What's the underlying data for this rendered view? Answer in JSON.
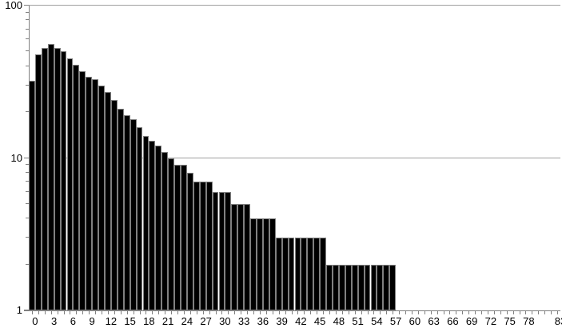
{
  "chart_data": {
    "type": "bar",
    "subtype": "histogram",
    "title": "",
    "xlabel": "",
    "ylabel": "",
    "legend": "none",
    "y_scale": "log",
    "ylim": [
      1,
      100
    ],
    "y_tick_labels": [
      "1",
      "10",
      "100"
    ],
    "y_major_ticks": [
      1,
      10,
      100
    ],
    "y_minor_ticks": [
      2,
      3,
      4,
      5,
      6,
      7,
      8,
      9,
      20,
      30,
      40,
      50,
      60,
      70,
      80,
      90
    ],
    "x_range": [
      -0.5,
      83.5
    ],
    "x_minor_tick_step": 1,
    "x_tick_labels": [
      "0",
      "3",
      "6",
      "9",
      "12",
      "15",
      "18",
      "21",
      "24",
      "27",
      "30",
      "33",
      "36",
      "39",
      "42",
      "45",
      "48",
      "51",
      "54",
      "57",
      "60",
      "63",
      "66",
      "69",
      "72",
      "75",
      "78",
      "83"
    ],
    "grid": "horizontal-major",
    "x": [
      0,
      1,
      2,
      3,
      4,
      5,
      6,
      7,
      8,
      9,
      10,
      11,
      12,
      13,
      14,
      15,
      16,
      17,
      18,
      19,
      20,
      21,
      22,
      23,
      24,
      25,
      26,
      27,
      28,
      29,
      30,
      31,
      32,
      33,
      34,
      35,
      36,
      37,
      38,
      39,
      40,
      41,
      42,
      43,
      44,
      45,
      46,
      47,
      48,
      49,
      50,
      51,
      52,
      53,
      54,
      55,
      56,
      57
    ],
    "values": [
      32,
      48,
      53,
      56,
      53,
      50,
      45,
      41,
      37,
      34,
      33,
      30,
      27,
      24,
      21,
      19,
      18,
      16,
      14,
      13,
      12,
      11,
      10,
      9,
      9,
      8,
      7,
      7,
      7,
      6,
      6,
      6,
      5,
      5,
      5,
      4,
      4,
      4,
      4,
      3,
      3,
      3,
      3,
      3,
      3,
      3,
      3,
      2,
      2,
      2,
      2,
      2,
      2,
      2,
      2,
      2,
      2,
      2
    ],
    "colors": {
      "background": "#ffffff",
      "bar_fill": "#000000",
      "bar_border": "#808080",
      "axis": "#808080",
      "gridline": "#a0a0a0",
      "label": "#000000"
    }
  }
}
